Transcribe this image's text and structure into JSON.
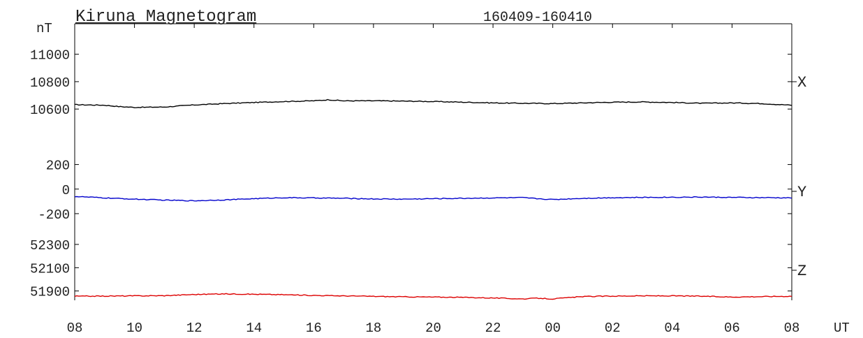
{
  "chart_data": {
    "type": "line",
    "title": "Kiruna Magnetogram",
    "date_range": "160409-160410",
    "unit_label": "nT",
    "x_unit_label": "UT",
    "x_range_hours": [
      0,
      24
    ],
    "x_tick_labels": [
      "08",
      "10",
      "12",
      "14",
      "16",
      "18",
      "20",
      "22",
      "00",
      "02",
      "04",
      "06",
      "08"
    ],
    "panels": [
      {
        "name": "X",
        "color": "#000000",
        "ylim": [
          10560,
          11080
        ],
        "y_ticks": [
          11000,
          10800,
          10600
        ],
        "y_tick_labels": [
          "11000",
          "10800",
          "10600"
        ],
        "x": [
          0,
          0.5,
          1,
          1.5,
          2,
          3,
          4,
          5,
          6,
          7,
          8,
          8.5,
          9,
          10,
          11,
          12,
          13,
          14,
          15,
          16,
          17,
          18,
          19,
          20,
          21,
          22,
          23,
          24
        ],
        "values": [
          10632,
          10630,
          10628,
          10618,
          10612,
          10615,
          10630,
          10640,
          10648,
          10655,
          10660,
          10668,
          10660,
          10660,
          10658,
          10655,
          10650,
          10645,
          10642,
          10640,
          10645,
          10650,
          10652,
          10648,
          10642,
          10645,
          10640,
          10628
        ]
      },
      {
        "name": "Y",
        "color": "#0000cc",
        "ylim": [
          -280,
          300
        ],
        "y_ticks": [
          200,
          0,
          -200
        ],
        "y_tick_labels": [
          "200",
          "0",
          "-200"
        ],
        "x": [
          0,
          1,
          2,
          3,
          4,
          5,
          6,
          7,
          8,
          9,
          10,
          11,
          12,
          13,
          14,
          15,
          15.5,
          16,
          17,
          18,
          19,
          20,
          21,
          22,
          23,
          24
        ],
        "values": [
          -60,
          -72,
          -82,
          -90,
          -95,
          -88,
          -78,
          -70,
          -72,
          -75,
          -80,
          -82,
          -78,
          -75,
          -72,
          -70,
          -78,
          -85,
          -75,
          -70,
          -68,
          -66,
          -65,
          -68,
          -70,
          -72
        ]
      },
      {
        "name": "Z",
        "color": "#dd0000",
        "ylim": [
          51820,
          52420
        ],
        "y_ticks": [
          52300,
          52100,
          51900
        ],
        "y_tick_labels": [
          "52300",
          "52100",
          "51900"
        ],
        "x": [
          0,
          1,
          2,
          3,
          4,
          5,
          6,
          7,
          8,
          9,
          10,
          11,
          12,
          13,
          14,
          15,
          15.5,
          16,
          17,
          18,
          19,
          20,
          21,
          22,
          23,
          24
        ],
        "values": [
          51855,
          51856,
          51858,
          51860,
          51870,
          51875,
          51872,
          51868,
          51862,
          51858,
          51854,
          51850,
          51848,
          51845,
          51840,
          51832,
          51838,
          51832,
          51852,
          51856,
          51858,
          51858,
          51855,
          51848,
          51852,
          51855
        ]
      }
    ]
  }
}
